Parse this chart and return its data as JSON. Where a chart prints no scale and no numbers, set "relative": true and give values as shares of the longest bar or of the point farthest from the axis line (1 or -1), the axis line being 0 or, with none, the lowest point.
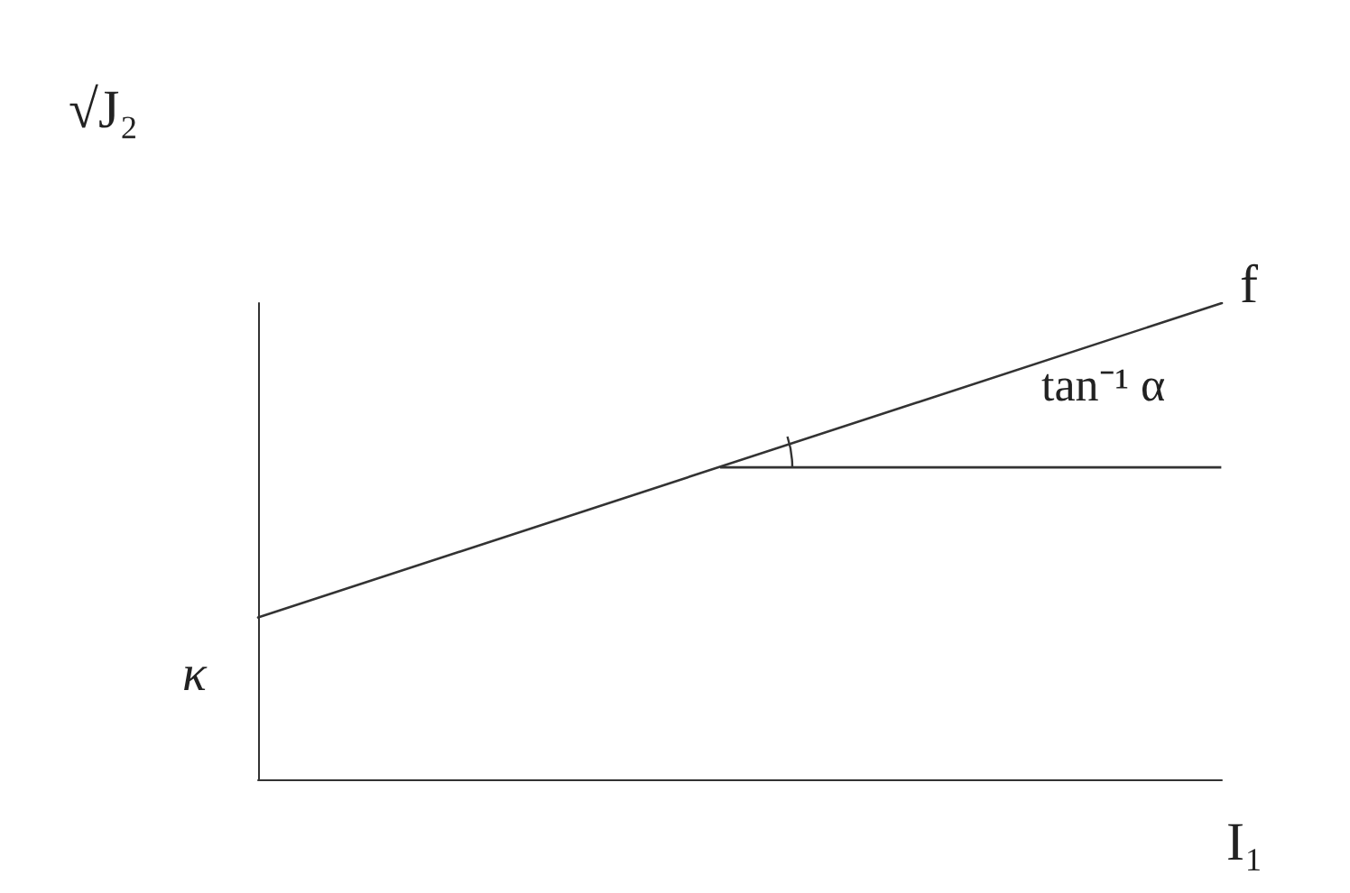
{
  "chart_data": {
    "type": "line",
    "relative": true,
    "xlabel": "I₁",
    "ylabel": "√J₂",
    "categories": [
      null,
      null
    ],
    "series": [
      {
        "name": "f",
        "color": "#333333",
        "values": [
          0.34,
          1
        ]
      }
    ],
    "annotations": [
      "κ",
      "tan⁻¹ α"
    ],
    "legend": false,
    "grid": false,
    "marker": "none",
    "line_style": "solid"
  }
}
